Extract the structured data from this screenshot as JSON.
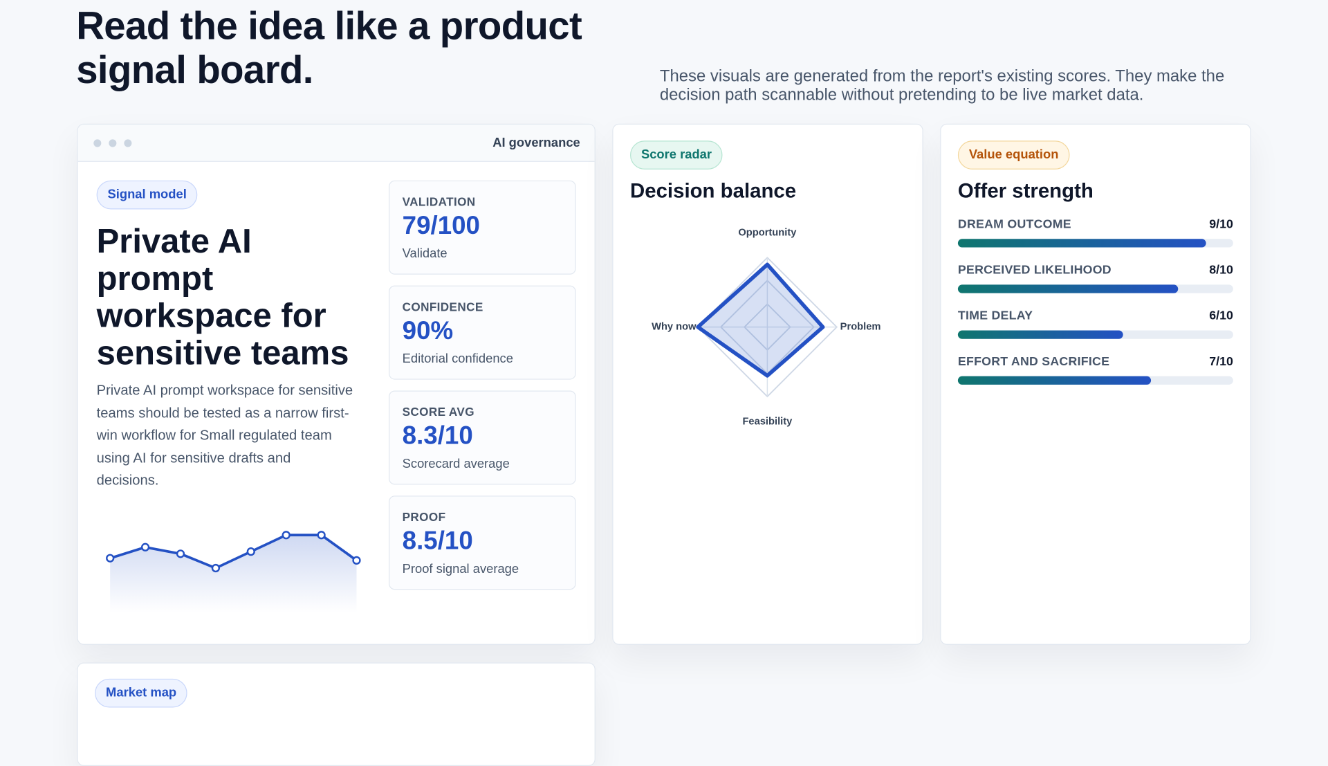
{
  "header": {
    "title": "Read the idea like a product signal board.",
    "description": "These visuals are generated from the report's existing scores. They make the decision path scannable without pretending to be live market data."
  },
  "signal_card": {
    "window_label": "AI governance",
    "tag": "Signal model",
    "title": "Private AI prompt workspace for sensitive teams",
    "body": "Private AI prompt workspace for sensitive teams should be tested as a narrow first-win workflow for Small regulated team using AI for sensitive drafts and decisions.",
    "sparkline": {
      "type": "line",
      "color": "#2451c4",
      "values": [
        7.4,
        8.4,
        7.8,
        6.5,
        8.0,
        9.5,
        9.5,
        7.2
      ],
      "ylim": [
        5,
        10
      ]
    },
    "metrics": [
      {
        "label": "VALIDATION",
        "value": "79/100",
        "caption": "Validate"
      },
      {
        "label": "CONFIDENCE",
        "value": "90%",
        "caption": "Editorial confidence"
      },
      {
        "label": "SCORE AVG",
        "value": "8.3/10",
        "caption": "Scorecard average"
      },
      {
        "label": "PROOF",
        "value": "8.5/10",
        "caption": "Proof signal average"
      }
    ]
  },
  "radar_card": {
    "tag": "Score radar",
    "title": "Decision balance",
    "chart": {
      "type": "radar",
      "color": "#2451c4",
      "categories": [
        "Opportunity",
        "Problem",
        "Feasibility",
        "Why now"
      ],
      "values": [
        9,
        8,
        7,
        10
      ],
      "rlim": [
        0,
        10
      ],
      "rticks": [
        3.3,
        6.7,
        10
      ]
    }
  },
  "offer_card": {
    "tag": "Value equation",
    "title": "Offer strength",
    "chart": {
      "type": "bar",
      "xlim": [
        0,
        10
      ],
      "categories": [
        "DREAM OUTCOME",
        "PERCEIVED LIKELIHOOD",
        "TIME DELAY",
        "EFFORT AND SACRIFICE"
      ],
      "values": [
        9,
        8,
        6,
        7
      ],
      "value_labels": [
        "9/10",
        "8/10",
        "6/10",
        "7/10"
      ]
    }
  },
  "market_card": {
    "tag": "Market map"
  }
}
